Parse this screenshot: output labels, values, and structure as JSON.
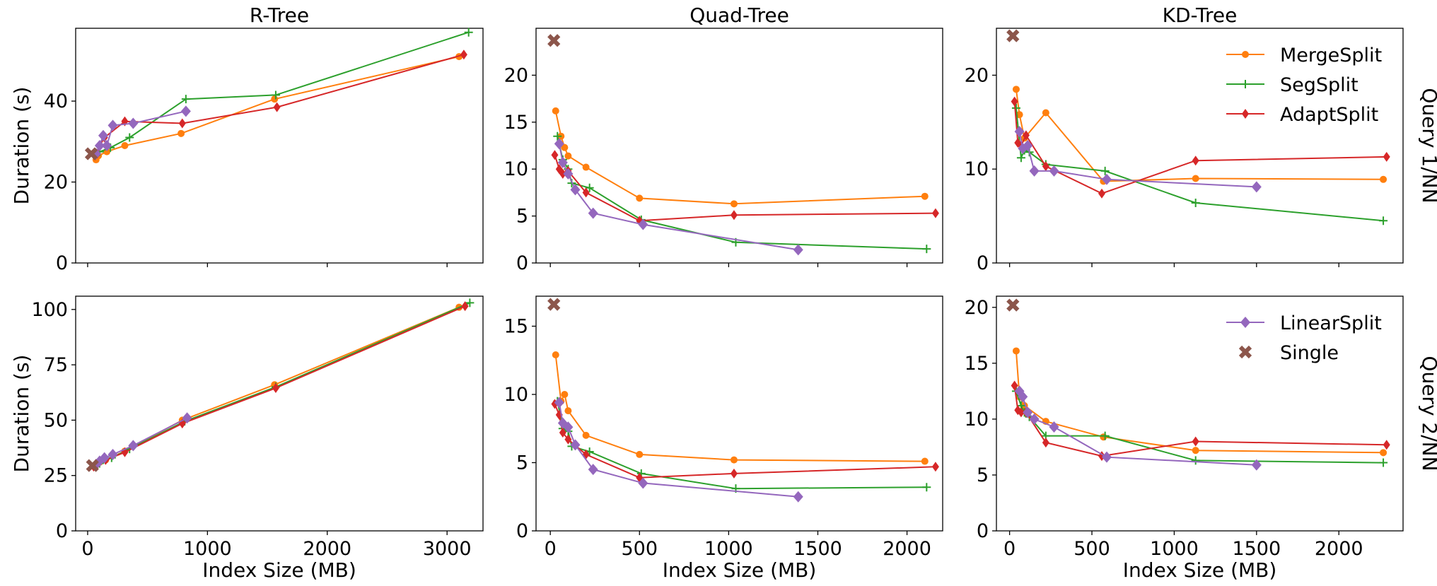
{
  "chart_data": {
    "type": "line",
    "xlabel": "Index Size (MB)",
    "ylabel": "Duration (s)",
    "column_titles": [
      "R-Tree",
      "Quad-Tree",
      "KD-Tree"
    ],
    "row_labels": [
      "Query 1/NN",
      "Query 2/NN"
    ],
    "series_styles": {
      "MergeSplit": {
        "color": "#ff7f0e",
        "marker": "circle"
      },
      "SegSplit": {
        "color": "#2ca02c",
        "marker": "plus"
      },
      "AdaptSplit": {
        "color": "#d62728",
        "marker": "diamond"
      },
      "LinearSplit": {
        "color": "#9467bd",
        "marker": "diamond-large"
      },
      "Single": {
        "color": "#8c564b",
        "marker": "x"
      }
    },
    "legends": [
      {
        "panel": 2,
        "entries": [
          "MergeSplit",
          "SegSplit",
          "AdaptSplit"
        ]
      },
      {
        "panel": 5,
        "entries": [
          "LinearSplit",
          "Single"
        ]
      }
    ],
    "panels": [
      {
        "title": "R-Tree",
        "row": 0,
        "col": 0,
        "xlim": [
          -100,
          3300
        ],
        "ylim": [
          0,
          58
        ],
        "xticks": [
          0,
          1000,
          2000,
          3000
        ],
        "yticks": [
          0,
          20,
          40
        ],
        "series": [
          {
            "name": "MergeSplit",
            "points": [
              [
                70,
                25.5
              ],
              [
                90,
                26.5
              ],
              [
                160,
                27.5
              ],
              [
                310,
                29
              ],
              [
                780,
                32
              ],
              [
                1560,
                40.5
              ],
              [
                3100,
                51
              ]
            ]
          },
          {
            "name": "SegSplit",
            "points": [
              [
                70,
                27
              ],
              [
                100,
                27.5
              ],
              [
                190,
                28.5
              ],
              [
                350,
                31
              ],
              [
                820,
                40.5
              ],
              [
                1570,
                41.5
              ],
              [
                3180,
                57
              ]
            ]
          },
          {
            "name": "AdaptSplit",
            "points": [
              [
                60,
                26.5
              ],
              [
                80,
                27
              ],
              [
                100,
                29
              ],
              [
                140,
                31
              ],
              [
                310,
                35
              ],
              [
                790,
                34.5
              ],
              [
                1580,
                38.5
              ],
              [
                3140,
                51.5
              ]
            ]
          },
          {
            "name": "LinearSplit",
            "points": [
              [
                70,
                27
              ],
              [
                100,
                29
              ],
              [
                130,
                31.5
              ],
              [
                160,
                29
              ],
              [
                210,
                34
              ],
              [
                380,
                34.5
              ],
              [
                820,
                37.5
              ]
            ]
          },
          {
            "name": "Single",
            "points": [
              [
                30,
                27
              ]
            ]
          }
        ]
      },
      {
        "title": "Quad-Tree",
        "row": 0,
        "col": 1,
        "xlim": [
          -80,
          2200
        ],
        "ylim": [
          0,
          25
        ],
        "xticks": [
          0,
          500,
          1000,
          1500,
          2000
        ],
        "yticks": [
          0,
          5,
          10,
          15,
          20
        ],
        "series": [
          {
            "name": "MergeSplit",
            "points": [
              [
                30,
                16.2
              ],
              [
                60,
                13.5
              ],
              [
                80,
                12.3
              ],
              [
                100,
                11.4
              ],
              [
                200,
                10.2
              ],
              [
                500,
                6.9
              ],
              [
                1030,
                6.3
              ],
              [
                2100,
                7.1
              ]
            ]
          },
          {
            "name": "SegSplit",
            "points": [
              [
                40,
                13.5
              ],
              [
                70,
                11
              ],
              [
                100,
                10
              ],
              [
                120,
                8.5
              ],
              [
                220,
                8
              ],
              [
                510,
                4.6
              ],
              [
                1040,
                2.2
              ],
              [
                2110,
                1.5
              ]
            ]
          },
          {
            "name": "AdaptSplit",
            "points": [
              [
                25,
                11.5
              ],
              [
                50,
                10
              ],
              [
                70,
                9.5
              ],
              [
                100,
                9.8
              ],
              [
                200,
                7.5
              ],
              [
                500,
                4.5
              ],
              [
                1030,
                5.1
              ],
              [
                2160,
                5.3
              ]
            ]
          },
          {
            "name": "LinearSplit",
            "points": [
              [
                50,
                12.7
              ],
              [
                70,
                10.7
              ],
              [
                100,
                9.5
              ],
              [
                140,
                7.8
              ],
              [
                240,
                5.3
              ],
              [
                520,
                4.1
              ],
              [
                1390,
                1.4
              ]
            ]
          },
          {
            "name": "Single",
            "points": [
              [
                20,
                23.7
              ]
            ]
          }
        ]
      },
      {
        "title": "KD-Tree",
        "row": 0,
        "col": 2,
        "xlim": [
          -80,
          2390
        ],
        "ylim": [
          0,
          25
        ],
        "xticks": [
          0,
          500,
          1000,
          1500,
          2000
        ],
        "yticks": [
          0,
          10,
          20
        ],
        "series": [
          {
            "name": "MergeSplit",
            "points": [
              [
                40,
                18.5
              ],
              [
                60,
                15.8
              ],
              [
                90,
                13.3
              ],
              [
                220,
                16
              ],
              [
                570,
                8.7
              ],
              [
                1130,
                9
              ],
              [
                2270,
                8.9
              ]
            ]
          },
          {
            "name": "SegSplit",
            "points": [
              [
                40,
                16.5
              ],
              [
                70,
                11.2
              ],
              [
                90,
                12
              ],
              [
                120,
                11.8
              ],
              [
                220,
                10.5
              ],
              [
                580,
                9.8
              ],
              [
                1130,
                6.4
              ],
              [
                2270,
                4.5
              ]
            ]
          },
          {
            "name": "AdaptSplit",
            "points": [
              [
                30,
                17.2
              ],
              [
                50,
                12.8
              ],
              [
                70,
                12.5
              ],
              [
                100,
                13.6
              ],
              [
                220,
                10.3
              ],
              [
                560,
                7.4
              ],
              [
                1130,
                10.9
              ],
              [
                2290,
                11.3
              ]
            ]
          },
          {
            "name": "LinearSplit",
            "points": [
              [
                60,
                14
              ],
              [
                80,
                12.2
              ],
              [
                110,
                12.5
              ],
              [
                150,
                9.8
              ],
              [
                270,
                9.8
              ],
              [
                590,
                8.9
              ],
              [
                1500,
                8.1
              ]
            ]
          },
          {
            "name": "Single",
            "points": [
              [
                20,
                24.2
              ]
            ]
          }
        ]
      },
      {
        "title": "",
        "row": 1,
        "col": 0,
        "xlim": [
          -100,
          3300
        ],
        "ylim": [
          0,
          106
        ],
        "xticks": [
          0,
          1000,
          2000,
          3000
        ],
        "yticks": [
          0,
          25,
          50,
          75,
          100
        ],
        "series": [
          {
            "name": "MergeSplit",
            "points": [
              [
                70,
                30
              ],
              [
                100,
                31
              ],
              [
                150,
                32
              ],
              [
                310,
                36
              ],
              [
                790,
                50
              ],
              [
                1560,
                66
              ],
              [
                3100,
                101
              ]
            ]
          },
          {
            "name": "SegSplit",
            "points": [
              [
                60,
                29.5
              ],
              [
                100,
                30.5
              ],
              [
                200,
                33
              ],
              [
                350,
                37
              ],
              [
                810,
                49.5
              ],
              [
                1570,
                65
              ],
              [
                3190,
                103
              ]
            ]
          },
          {
            "name": "AdaptSplit",
            "points": [
              [
                50,
                29
              ],
              [
                80,
                30
              ],
              [
                150,
                32
              ],
              [
                310,
                35.5
              ],
              [
                790,
                48.5
              ],
              [
                1570,
                64.5
              ],
              [
                3150,
                101.5
              ]
            ]
          },
          {
            "name": "LinearSplit",
            "points": [
              [
                70,
                30
              ],
              [
                100,
                31.5
              ],
              [
                140,
                33
              ],
              [
                210,
                34.5
              ],
              [
                380,
                38.5
              ],
              [
                830,
                51
              ]
            ]
          },
          {
            "name": "Single",
            "points": [
              [
                40,
                29.5
              ]
            ]
          }
        ]
      },
      {
        "title": "",
        "row": 1,
        "col": 1,
        "xlim": [
          -80,
          2200
        ],
        "ylim": [
          0,
          17.2
        ],
        "xticks": [
          0,
          500,
          1000,
          1500,
          2000
        ],
        "yticks": [
          0,
          5,
          10,
          15
        ],
        "series": [
          {
            "name": "MergeSplit",
            "points": [
              [
                30,
                12.9
              ],
              [
                60,
                9.5
              ],
              [
                80,
                10
              ],
              [
                100,
                8.8
              ],
              [
                200,
                7
              ],
              [
                500,
                5.6
              ],
              [
                1030,
                5.2
              ],
              [
                2100,
                5.1
              ]
            ]
          },
          {
            "name": "SegSplit",
            "points": [
              [
                40,
                9.5
              ],
              [
                70,
                7.5
              ],
              [
                100,
                7.3
              ],
              [
                120,
                6.2
              ],
              [
                220,
                5.8
              ],
              [
                510,
                4.2
              ],
              [
                1040,
                3.1
              ],
              [
                2110,
                3.2
              ]
            ]
          },
          {
            "name": "AdaptSplit",
            "points": [
              [
                25,
                9.3
              ],
              [
                50,
                8.5
              ],
              [
                70,
                7.2
              ],
              [
                100,
                6.7
              ],
              [
                200,
                5.6
              ],
              [
                500,
                3.9
              ],
              [
                1030,
                4.2
              ],
              [
                2160,
                4.7
              ]
            ]
          },
          {
            "name": "LinearSplit",
            "points": [
              [
                50,
                9.4
              ],
              [
                70,
                7.9
              ],
              [
                100,
                7.6
              ],
              [
                140,
                6.3
              ],
              [
                240,
                4.5
              ],
              [
                520,
                3.5
              ],
              [
                1390,
                2.5
              ]
            ]
          },
          {
            "name": "Single",
            "points": [
              [
                20,
                16.6
              ]
            ]
          }
        ]
      },
      {
        "title": "",
        "row": 1,
        "col": 2,
        "xlim": [
          -80,
          2390
        ],
        "ylim": [
          0,
          21
        ],
        "xticks": [
          0,
          500,
          1000,
          1500,
          2000
        ],
        "yticks": [
          0,
          5,
          10,
          15,
          20
        ],
        "series": [
          {
            "name": "MergeSplit",
            "points": [
              [
                40,
                16.1
              ],
              [
                60,
                12
              ],
              [
                90,
                11.2
              ],
              [
                220,
                9.8
              ],
              [
                570,
                8.4
              ],
              [
                1130,
                7.2
              ],
              [
                2270,
                7
              ]
            ]
          },
          {
            "name": "SegSplit",
            "points": [
              [
                40,
                12.5
              ],
              [
                70,
                11.2
              ],
              [
                90,
                10.6
              ],
              [
                120,
                10.2
              ],
              [
                220,
                8.5
              ],
              [
                580,
                8.5
              ],
              [
                1130,
                6.3
              ],
              [
                2270,
                6.1
              ]
            ]
          },
          {
            "name": "AdaptSplit",
            "points": [
              [
                30,
                13
              ],
              [
                50,
                10.8
              ],
              [
                70,
                10.6
              ],
              [
                100,
                10.6
              ],
              [
                220,
                7.9
              ],
              [
                560,
                6.7
              ],
              [
                1130,
                8
              ],
              [
                2290,
                7.7
              ]
            ]
          },
          {
            "name": "LinearSplit",
            "points": [
              [
                60,
                12.5
              ],
              [
                80,
                12
              ],
              [
                110,
                10.6
              ],
              [
                150,
                10
              ],
              [
                270,
                9.3
              ],
              [
                590,
                6.6
              ],
              [
                1500,
                5.9
              ]
            ]
          },
          {
            "name": "Single",
            "points": [
              [
                20,
                20.2
              ]
            ]
          }
        ]
      }
    ]
  }
}
